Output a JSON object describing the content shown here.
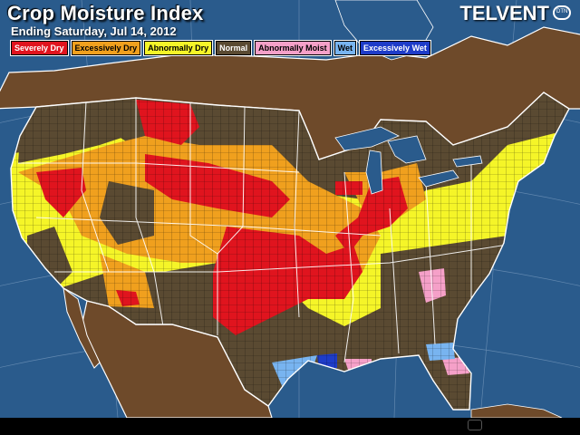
{
  "header": {
    "title": "Crop Moisture Index",
    "subtitle": "Ending Saturday, Jul 14, 2012",
    "logo": "TELVENT",
    "logo_mark": "DTN"
  },
  "legend": [
    {
      "label": "Severely Dry",
      "color": "#e0141e",
      "text_color": "#ffffff"
    },
    {
      "label": "Excessively Dry",
      "color": "#f0a01e",
      "text_color": "#000000"
    },
    {
      "label": "Abnormally Dry",
      "color": "#f5f528",
      "text_color": "#000000"
    },
    {
      "label": "Normal",
      "color": "#5a4a32",
      "text_color": "#ffffff"
    },
    {
      "label": "Abnormally Moist",
      "color": "#f5a0c8",
      "text_color": "#000000"
    },
    {
      "label": "Wet",
      "color": "#78b4f0",
      "text_color": "#000000"
    },
    {
      "label": "Excessively Wet",
      "color": "#1e3cc8",
      "text_color": "#ffffff"
    }
  ],
  "colors": {
    "ocean": "#2a5b8c",
    "land_outside": "#6e4a2a",
    "lakes": "#2a5b8c",
    "borders": "#ffffff",
    "county_lines": "#000000"
  }
}
